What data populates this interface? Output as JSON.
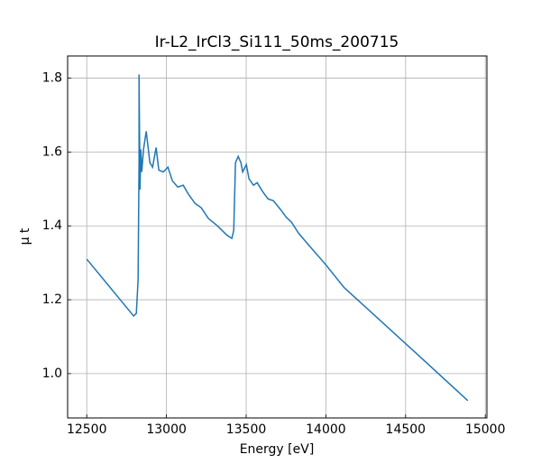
{
  "chart_data": {
    "type": "line",
    "title": "Ir-L2_IrCl3_Si111_50ms_200715",
    "x_label": "Energy [eV]",
    "y_label": "μ t",
    "x": [
      12500,
      12794,
      12811,
      12822,
      12828,
      12828,
      12834,
      12839,
      12845,
      12856,
      12873,
      12896,
      12913,
      12935,
      12952,
      12981,
      13009,
      13037,
      13071,
      13105,
      13139,
      13179,
      13218,
      13263,
      13320,
      13376,
      13410,
      13422,
      13433,
      13450,
      13467,
      13478,
      13501,
      13518,
      13546,
      13569,
      13603,
      13637,
      13671,
      13716,
      13750,
      13784,
      13829,
      13886,
      13999,
      14112,
      14338,
      14564,
      14890
    ],
    "series": [
      {
        "color": "#1f77b4",
        "values": [
          1.31,
          1.156,
          1.163,
          1.254,
          1.571,
          1.81,
          1.498,
          1.607,
          1.546,
          1.607,
          1.656,
          1.571,
          1.559,
          1.612,
          1.551,
          1.546,
          1.559,
          1.522,
          1.505,
          1.51,
          1.485,
          1.461,
          1.449,
          1.42,
          1.4,
          1.376,
          1.366,
          1.388,
          1.571,
          1.588,
          1.571,
          1.546,
          1.566,
          1.527,
          1.51,
          1.517,
          1.493,
          1.473,
          1.468,
          1.444,
          1.424,
          1.41,
          1.38,
          1.351,
          1.295,
          1.234,
          1.145,
          1.056,
          0.927
        ]
      }
    ],
    "xlim": [
      12380,
      15010
    ],
    "ylim": [
      0.88,
      1.86
    ],
    "xticks": [
      12500,
      13000,
      13500,
      14000,
      14500,
      15000
    ],
    "yticks": [
      {
        "value": 1,
        "label": "1.0"
      },
      1.2,
      1.4,
      1.6,
      1.8
    ],
    "grid": true
  }
}
